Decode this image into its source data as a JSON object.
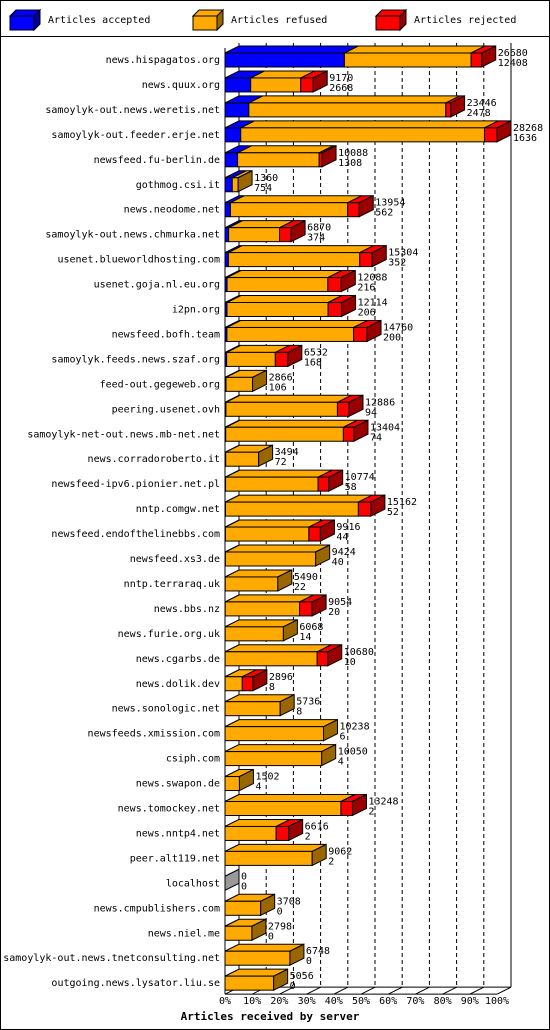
{
  "chart_data": {
    "type": "bar3d-stacked-horizontal",
    "x_label": "Articles received by server",
    "categories": [
      "news.hispagatos.org",
      "news.quux.org",
      "samoylyk-out.news.weretis.net",
      "samoylyk-out.feeder.erje.net",
      "newsfeed.fu-berlin.de",
      "gothmog.csi.it",
      "news.neodome.net",
      "samoylyk-out.news.chmurka.net",
      "usenet.blueworldhosting.com",
      "usenet.goja.nl.eu.org",
      "i2pn.org",
      "newsfeed.bofh.team",
      "samoylyk.feeds.news.szaf.org",
      "feed-out.gegeweb.org",
      "peering.usenet.ovh",
      "samoylyk-net-out.news.mb-net.net",
      "news.corradoroberto.it",
      "newsfeed-ipv6.pionier.net.pl",
      "nntp.comgw.net",
      "newsfeed.endofthelinebbs.com",
      "newsfeed.xs3.de",
      "nntp.terraraq.uk",
      "news.bbs.nz",
      "news.furie.org.uk",
      "news.cgarbs.de",
      "news.dolik.dev",
      "news.sonologic.net",
      "newsfeeds.xmission.com",
      "csiph.com",
      "news.swapon.de",
      "news.tomockey.net",
      "news.nntp4.net",
      "peer.alt119.net",
      "localhost",
      "news.cmpublishers.com",
      "news.niel.me",
      "samoylyk-out.news.tnetconsulting.net",
      "outgoing.news.lysator.liu.se"
    ],
    "totals": [
      26680,
      9170,
      23446,
      28268,
      10088,
      1360,
      13954,
      6870,
      15304,
      12088,
      12114,
      14760,
      6532,
      2866,
      12886,
      13404,
      3494,
      10774,
      15162,
      9916,
      9424,
      5490,
      9054,
      6068,
      10680,
      2896,
      5736,
      10238,
      10050,
      1502,
      13248,
      6616,
      9062,
      0,
      3708,
      2798,
      6748,
      5056
    ],
    "series": [
      {
        "name": "Articles accepted",
        "color": "#0000ff",
        "values": [
          12408,
          2668,
          2478,
          1636,
          1308,
          754,
          562,
          374,
          352,
          216,
          206,
          200,
          168,
          106,
          94,
          74,
          72,
          58,
          52,
          44,
          40,
          22,
          20,
          14,
          10,
          8,
          8,
          6,
          4,
          4,
          2,
          2,
          2,
          0,
          0,
          0,
          0,
          0
        ]
      },
      {
        "name": "Articles refused",
        "color": "#ffaa00",
        "values": [
          13172,
          5202,
          20468,
          25332,
          8480,
          606,
          12192,
          5296,
          13652,
          10472,
          10508,
          13160,
          5064,
          2760,
          11592,
          12230,
          3422,
          9616,
          13810,
          8672,
          9384,
          5468,
          7734,
          6054,
          9570,
          1788,
          5728,
          10232,
          10046,
          1498,
          12046,
          5314,
          9060,
          0,
          3708,
          2798,
          6748,
          5056
        ]
      },
      {
        "name": "Articles rejected",
        "color": "#ff0000",
        "values": [
          1100,
          1300,
          500,
          1300,
          300,
          0,
          1200,
          1200,
          1300,
          1400,
          1400,
          1400,
          1300,
          0,
          1200,
          1100,
          0,
          1100,
          1300,
          1200,
          0,
          0,
          1300,
          0,
          1100,
          1100,
          0,
          0,
          0,
          0,
          1200,
          1300,
          0,
          0,
          0,
          0,
          0,
          0
        ]
      }
    ],
    "xlim": [
      0,
      28268
    ],
    "xticks": [
      {
        "value": 0,
        "label": "0%"
      },
      {
        "value": 2826.8,
        "label": "10%"
      },
      {
        "value": 5653.6,
        "label": "20%"
      },
      {
        "value": 8480.4,
        "label": "30%"
      },
      {
        "value": 11307.2,
        "label": "40%"
      },
      {
        "value": 14134,
        "label": "50%"
      },
      {
        "value": 16960.8,
        "label": "60%"
      },
      {
        "value": 19787.6,
        "label": "70%"
      },
      {
        "value": 22614.4,
        "label": "80%"
      },
      {
        "value": 25441.2,
        "label": "90%"
      },
      {
        "value": 28268,
        "label": "100%"
      }
    ],
    "grid": true
  }
}
